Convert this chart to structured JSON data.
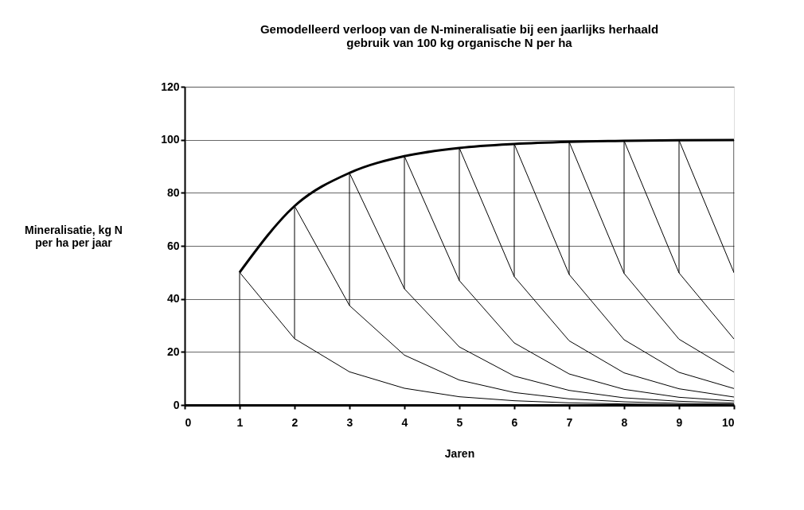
{
  "chart_data": {
    "type": "line",
    "title": "Gemodelleerd verloop van de N-mineralisatie bij een jaarlijks herhaald gebruik van 100 kg organische N per ha",
    "xlabel": "Jaren",
    "ylabel": "Mineralisatie, kg N per ha per jaar",
    "xlim": [
      0,
      10
    ],
    "ylim": [
      0,
      120
    ],
    "xticks": [
      0,
      1,
      2,
      3,
      4,
      5,
      6,
      7,
      8,
      9,
      10
    ],
    "yticks": [
      0,
      20,
      40,
      60,
      80,
      100,
      120
    ],
    "grid": "y",
    "marker": "none",
    "line_style": "solid",
    "series": [
      {
        "color": "#000000",
        "x": [
          1,
          2,
          3,
          4,
          5,
          6,
          7,
          8,
          9,
          10
        ],
        "values": [
          50,
          75,
          87.5,
          93.8,
          96.9,
          98.4,
          99.2,
          99.6,
          99.8,
          99.9
        ]
      },
      {
        "color": "#000000",
        "x": [
          1,
          1,
          2,
          3,
          4,
          5,
          6,
          7,
          8,
          9,
          10
        ],
        "values": [
          0,
          50,
          25,
          12.5,
          6.3,
          3.1,
          1.6,
          0.8,
          0.4,
          0.2,
          0.1
        ]
      },
      {
        "color": "#000000",
        "x": [
          2,
          2,
          3,
          4,
          5,
          6,
          7,
          8,
          9,
          10
        ],
        "values": [
          25,
          75,
          37.5,
          18.8,
          9.4,
          4.7,
          2.3,
          1.2,
          0.6,
          0.3
        ]
      },
      {
        "color": "#000000",
        "x": [
          3,
          3,
          4,
          5,
          6,
          7,
          8,
          9,
          10
        ],
        "values": [
          37.5,
          87.5,
          43.8,
          21.9,
          10.9,
          5.5,
          2.7,
          1.4,
          0.7
        ]
      },
      {
        "color": "#000000",
        "x": [
          4,
          4,
          5,
          6,
          7,
          8,
          9,
          10
        ],
        "values": [
          43.8,
          93.8,
          46.9,
          23.4,
          11.7,
          5.9,
          2.9,
          1.5
        ]
      },
      {
        "color": "#000000",
        "x": [
          5,
          5,
          6,
          7,
          8,
          9,
          10
        ],
        "values": [
          46.9,
          96.9,
          48.4,
          24.2,
          12.1,
          6.1,
          3.0
        ]
      },
      {
        "color": "#000000",
        "x": [
          6,
          6,
          7,
          8,
          9,
          10
        ],
        "values": [
          48.4,
          98.4,
          49.2,
          24.6,
          12.3,
          6.2
        ]
      },
      {
        "color": "#000000",
        "x": [
          7,
          7,
          8,
          9,
          10
        ],
        "values": [
          49.2,
          99.2,
          49.6,
          24.8,
          12.4
        ]
      },
      {
        "color": "#000000",
        "x": [
          8,
          8,
          9,
          10
        ],
        "values": [
          49.6,
          99.6,
          49.8,
          24.9
        ]
      },
      {
        "color": "#000000",
        "x": [
          9,
          9,
          10
        ],
        "values": [
          49.8,
          99.8,
          49.9
        ]
      },
      {
        "color": "#000000",
        "x": [
          10,
          10
        ],
        "values": [
          49.9,
          99.9
        ]
      }
    ]
  }
}
